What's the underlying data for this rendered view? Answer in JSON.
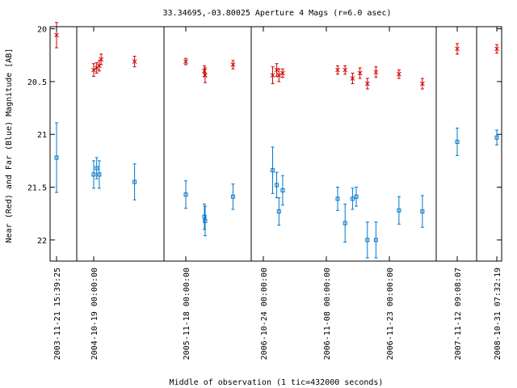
{
  "chart_data": {
    "type": "scatter",
    "title": "33.34695,-03.80025   Aperture 4 Mags (r=6.0 asec)",
    "xlabel": "Middle of observation (1 tic=432000 seconds)",
    "ylabel": "Near (Red) and Far (Blue) Magnitude [AB]",
    "ylim": [
      22.2,
      19.98
    ],
    "y_inverted": true,
    "y_ticks": [
      {
        "value": 20,
        "label": "20"
      },
      {
        "value": 20.5,
        "label": "20.5"
      },
      {
        "value": 21,
        "label": "21"
      },
      {
        "value": 21.5,
        "label": "21.5"
      },
      {
        "value": 22,
        "label": "22"
      }
    ],
    "segments": [
      {
        "tick_labels": [
          "2003-11-21 15:39:25",
          "2004-10-19 00:00:00"
        ],
        "near": [
          {
            "x": 0.0,
            "y": 20.06,
            "err": 0.12
          },
          {
            "x": 1.0,
            "y": 20.39,
            "err": 0.06
          },
          {
            "x": 1.08,
            "y": 20.37,
            "err": 0.05
          },
          {
            "x": 1.15,
            "y": 20.35,
            "err": 0.05
          },
          {
            "x": 1.2,
            "y": 20.29,
            "err": 0.05
          },
          {
            "x": 2.1,
            "y": 20.31,
            "err": 0.05
          }
        ],
        "far": [
          {
            "x": 0.0,
            "y": 21.22,
            "err": 0.33
          },
          {
            "x": 1.0,
            "y": 21.38,
            "err": 0.13
          },
          {
            "x": 1.08,
            "y": 21.32,
            "err": 0.1
          },
          {
            "x": 1.15,
            "y": 21.38,
            "err": 0.13
          },
          {
            "x": 2.1,
            "y": 21.45,
            "err": 0.17
          }
        ]
      },
      {
        "tick_labels": [
          "2005-11-18 00:00:00"
        ],
        "near": [
          {
            "x": 0.0,
            "y": 20.31,
            "err": 0.03
          },
          {
            "x": 0.5,
            "y": 20.4,
            "err": 0.05
          },
          {
            "x": 0.52,
            "y": 20.44,
            "err": 0.07
          },
          {
            "x": 1.27,
            "y": 20.34,
            "err": 0.04
          }
        ],
        "far": [
          {
            "x": 0.0,
            "y": 21.57,
            "err": 0.13
          },
          {
            "x": 0.5,
            "y": 21.78,
            "err": 0.12
          },
          {
            "x": 0.52,
            "y": 21.82,
            "err": 0.14
          },
          {
            "x": 1.27,
            "y": 21.59,
            "err": 0.12
          }
        ]
      },
      {
        "tick_labels": [
          "2006-10-24 00:00:00",
          "2006-11-08 00:00:00",
          "2006-11-23 00:00:00"
        ],
        "near": [
          {
            "x": 0.25,
            "y": 20.44,
            "err": 0.08
          },
          {
            "x": 0.36,
            "y": 20.39,
            "err": 0.06
          },
          {
            "x": 0.42,
            "y": 20.44,
            "err": 0.06
          },
          {
            "x": 0.52,
            "y": 20.42,
            "err": 0.04
          },
          {
            "x": 2.0,
            "y": 20.39,
            "err": 0.04
          },
          {
            "x": 2.2,
            "y": 20.39,
            "err": 0.04
          },
          {
            "x": 2.4,
            "y": 20.47,
            "err": 0.05
          },
          {
            "x": 2.6,
            "y": 20.42,
            "err": 0.05
          },
          {
            "x": 2.8,
            "y": 20.52,
            "err": 0.05
          },
          {
            "x": 3.03,
            "y": 20.41,
            "err": 0.05
          },
          {
            "x": 3.65,
            "y": 20.43,
            "err": 0.04
          },
          {
            "x": 4.28,
            "y": 20.52,
            "err": 0.05
          }
        ],
        "far": [
          {
            "x": 0.25,
            "y": 21.34,
            "err": 0.22
          },
          {
            "x": 0.36,
            "y": 21.48,
            "err": 0.12
          },
          {
            "x": 0.42,
            "y": 21.73,
            "err": 0.13
          },
          {
            "x": 0.52,
            "y": 21.53,
            "err": 0.14
          },
          {
            "x": 2.0,
            "y": 21.61,
            "err": 0.11
          },
          {
            "x": 2.2,
            "y": 21.84,
            "err": 0.18
          },
          {
            "x": 2.4,
            "y": 21.61,
            "err": 0.1
          },
          {
            "x": 2.5,
            "y": 21.59,
            "err": 0.09
          },
          {
            "x": 2.8,
            "y": 22.0,
            "err": 0.17
          },
          {
            "x": 3.03,
            "y": 22.0,
            "err": 0.17
          },
          {
            "x": 3.65,
            "y": 21.72,
            "err": 0.13
          },
          {
            "x": 4.28,
            "y": 21.73,
            "err": 0.15
          }
        ]
      },
      {
        "tick_labels": [
          "2007-11-12 09:08:07"
        ],
        "near": [
          {
            "x": 0.0,
            "y": 20.19,
            "err": 0.05
          }
        ],
        "far": [
          {
            "x": 0.0,
            "y": 21.07,
            "err": 0.13
          }
        ]
      },
      {
        "tick_labels": [
          "2008-10-31 07:32:19"
        ],
        "near": [
          {
            "x": 0.0,
            "y": 20.19,
            "err": 0.04
          }
        ],
        "far": [
          {
            "x": 0.0,
            "y": 21.03,
            "err": 0.07
          }
        ]
      }
    ],
    "colors": {
      "near": "#cc0000",
      "far": "#0077cc",
      "axes": "#000000"
    },
    "markers": {
      "near": "x",
      "far": "square"
    },
    "grid": false,
    "legend": false
  }
}
